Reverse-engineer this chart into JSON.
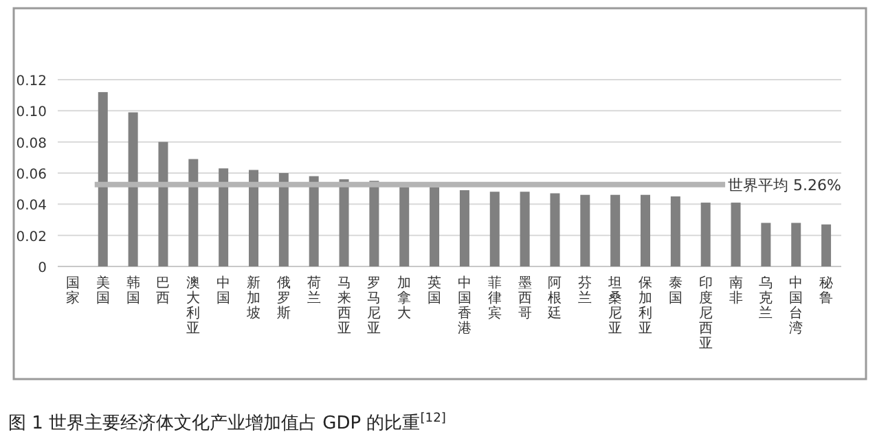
{
  "chart_data": {
    "type": "bar",
    "categories": [
      "国家",
      "美国",
      "韩国",
      "巴西",
      "澳大利亚",
      "中国",
      "新加坡",
      "俄罗斯",
      "荷兰",
      "马来西亚",
      "罗马尼亚",
      "加拿大",
      "英国",
      "中国香港",
      "菲律宾",
      "墨西哥",
      "阿根廷",
      "芬兰",
      "坦桑尼亚",
      "保加利亚",
      "泰国",
      "印度尼西亚",
      "南非",
      "乌克兰",
      "中国台湾",
      "秘鲁"
    ],
    "values": [
      null,
      0.112,
      0.099,
      0.08,
      0.069,
      0.063,
      0.062,
      0.06,
      0.058,
      0.056,
      0.055,
      0.051,
      0.051,
      0.049,
      0.048,
      0.048,
      0.047,
      0.046,
      0.046,
      0.046,
      0.045,
      0.041,
      0.041,
      0.028,
      0.028,
      0.027
    ],
    "color": "#808080",
    "ylim": [
      0,
      0.12
    ],
    "yticks": [
      0,
      0.02,
      0.04,
      0.06,
      0.08,
      {
        "value": 0.1,
        "label": "0.10"
      },
      0.12
    ],
    "grid": "y",
    "ref_lines": [
      {
        "axis": "y",
        "value": 0.0526,
        "label": "世界平均 5.26%",
        "color": "#b4b4b4"
      }
    ],
    "annotations": [
      "图 1 世界主要经济体文化产业增加值占 GDP 的比重$^{[12]}$"
    ]
  }
}
